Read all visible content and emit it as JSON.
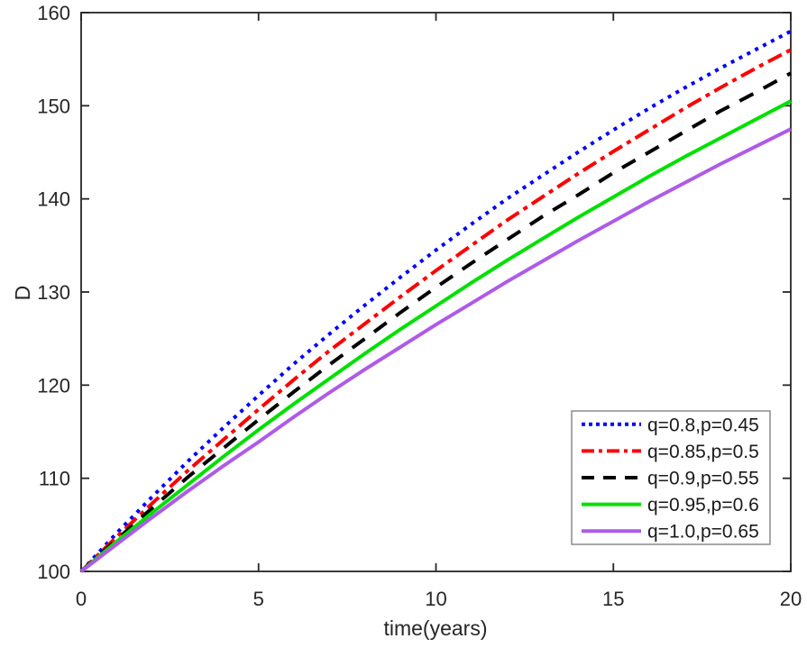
{
  "figure": {
    "background": "#FFFFFF",
    "axis_color": "#262626",
    "legend_border_color": "#8C8C8C",
    "legend_background": "#FFFFFF"
  },
  "chart_data": {
    "type": "line",
    "title": "",
    "xlabel": "time(years)",
    "ylabel": "D",
    "xlim": [
      0,
      20
    ],
    "ylim": [
      100,
      160
    ],
    "xticks": [
      0,
      5,
      10,
      15,
      20
    ],
    "yticks": [
      100,
      110,
      120,
      130,
      140,
      150,
      160
    ],
    "grid": false,
    "legend_position": "bottom-right",
    "x": [
      0,
      1,
      2,
      3,
      4,
      5,
      6,
      7,
      8,
      9,
      10,
      11,
      12,
      13,
      14,
      15,
      16,
      17,
      18,
      19,
      20
    ],
    "series": [
      {
        "name": "q=0.8,p=0.45",
        "color": "#0000FF",
        "style": "dotted",
        "values": [
          100,
          104.1,
          108.0,
          111.8,
          115.4,
          118.9,
          122.3,
          125.5,
          128.6,
          131.6,
          134.5,
          137.3,
          140.0,
          142.5,
          145.0,
          147.4,
          149.7,
          151.9,
          154.0,
          156.0,
          158.0
        ]
      },
      {
        "name": "q=0.85,p=0.5",
        "color": "#FF0000",
        "style": "dashdot",
        "values": [
          100,
          103.7,
          107.3,
          110.8,
          114.1,
          117.4,
          120.6,
          123.7,
          126.6,
          129.5,
          132.3,
          135.0,
          137.7,
          140.2,
          142.7,
          145.1,
          147.4,
          149.7,
          151.9,
          154.0,
          156.0
        ]
      },
      {
        "name": "q=0.9,p=0.55",
        "color": "#000000",
        "style": "dashed",
        "values": [
          100,
          103.4,
          106.8,
          110.1,
          113.2,
          116.3,
          119.3,
          122.2,
          125.0,
          127.8,
          130.5,
          133.1,
          135.6,
          138.1,
          140.4,
          142.8,
          145.0,
          147.2,
          149.4,
          151.4,
          153.5
        ]
      },
      {
        "name": "q=0.95,p=0.6",
        "color": "#00E000",
        "style": "solid",
        "values": [
          100,
          103.2,
          106.3,
          109.3,
          112.3,
          115.2,
          118.0,
          120.7,
          123.4,
          126.0,
          128.5,
          131.0,
          133.4,
          135.7,
          138.0,
          140.2,
          142.4,
          144.5,
          146.5,
          148.5,
          150.5
        ]
      },
      {
        "name": "q=1.0,p=0.65",
        "color": "#AE5BE8",
        "style": "solid",
        "values": [
          100,
          102.9,
          105.8,
          108.6,
          111.3,
          113.9,
          116.6,
          119.2,
          121.7,
          124.1,
          126.5,
          128.8,
          131.1,
          133.3,
          135.5,
          137.6,
          139.7,
          141.7,
          143.7,
          145.6,
          147.5
        ]
      }
    ]
  }
}
